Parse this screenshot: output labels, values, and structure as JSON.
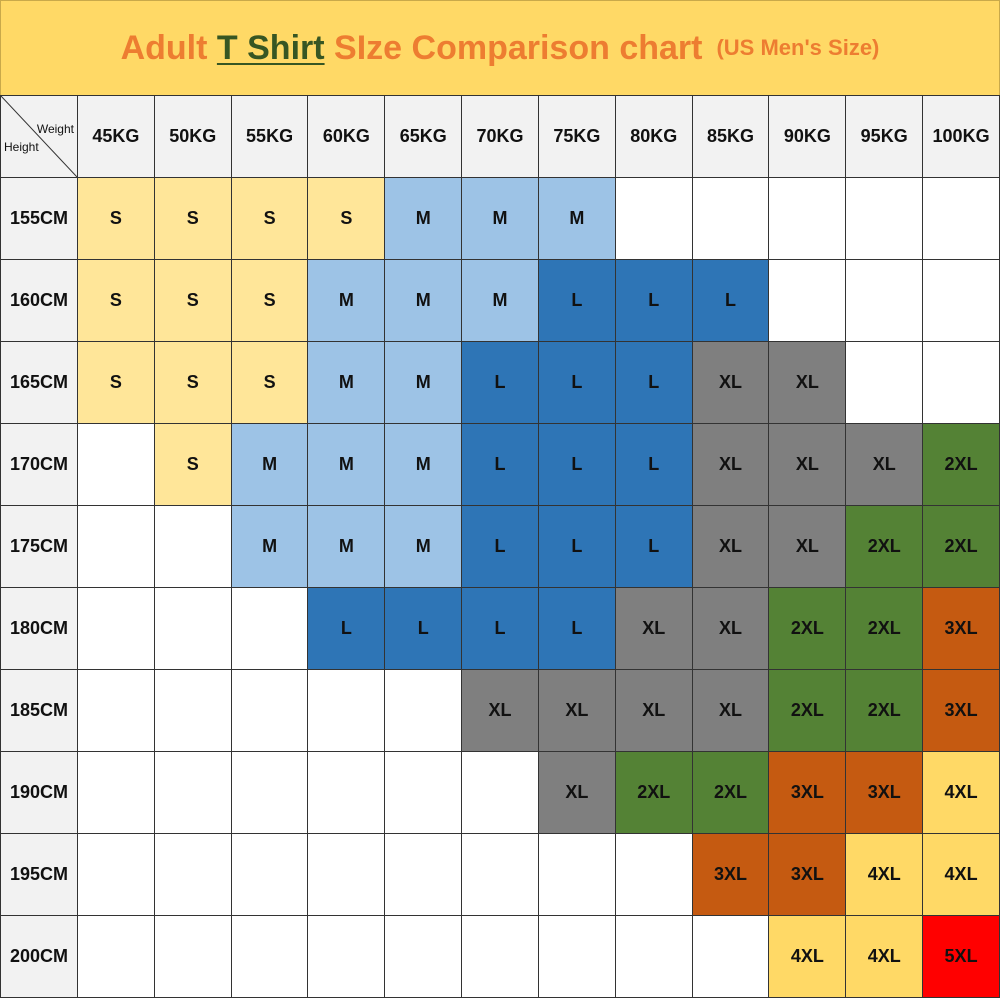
{
  "title": {
    "part1": "Adult",
    "highlight": "T Shirt",
    "part2": "SIze Comparison chart",
    "subtitle": "(US  Men's  Size)"
  },
  "chart_data": {
    "type": "table",
    "corner": {
      "col_label": "Weight",
      "row_label": "Height"
    },
    "columns": [
      "45KG",
      "50KG",
      "55KG",
      "60KG",
      "65KG",
      "70KG",
      "75KG",
      "80KG",
      "85KG",
      "90KG",
      "95KG",
      "100KG"
    ],
    "rows": [
      {
        "height": "155CM",
        "sizes": [
          "S",
          "S",
          "S",
          "S",
          "M",
          "M",
          "M",
          "",
          "",
          "",
          "",
          ""
        ]
      },
      {
        "height": "160CM",
        "sizes": [
          "S",
          "S",
          "S",
          "M",
          "M",
          "M",
          "L",
          "L",
          "L",
          "",
          "",
          ""
        ]
      },
      {
        "height": "165CM",
        "sizes": [
          "S",
          "S",
          "S",
          "M",
          "M",
          "L",
          "L",
          "L",
          "XL",
          "XL",
          "",
          ""
        ]
      },
      {
        "height": "170CM",
        "sizes": [
          "",
          "S",
          "M",
          "M",
          "M",
          "L",
          "L",
          "L",
          "XL",
          "XL",
          "XL",
          "2XL"
        ]
      },
      {
        "height": "175CM",
        "sizes": [
          "",
          "",
          "M",
          "M",
          "M",
          "L",
          "L",
          "L",
          "XL",
          "XL",
          "2XL",
          "2XL"
        ]
      },
      {
        "height": "180CM",
        "sizes": [
          "",
          "",
          "",
          "L",
          "L",
          "L",
          "L",
          "XL",
          "XL",
          "2XL",
          "2XL",
          "3XL"
        ]
      },
      {
        "height": "185CM",
        "sizes": [
          "",
          "",
          "",
          "",
          "",
          "XL",
          "XL",
          "XL",
          "XL",
          "2XL",
          "2XL",
          "3XL"
        ]
      },
      {
        "height": "190CM",
        "sizes": [
          "",
          "",
          "",
          "",
          "",
          "",
          "XL",
          "2XL",
          "2XL",
          "3XL",
          "3XL",
          "4XL"
        ]
      },
      {
        "height": "195CM",
        "sizes": [
          "",
          "",
          "",
          "",
          "",
          "",
          "",
          "",
          "3XL",
          "3XL",
          "4XL",
          "4XL"
        ]
      },
      {
        "height": "200CM",
        "sizes": [
          "",
          "",
          "",
          "",
          "",
          "",
          "",
          "",
          "",
          "4XL",
          "4XL",
          "5XL"
        ]
      }
    ],
    "size_colors": {
      "S": "#FFE699",
      "M": "#9DC3E6",
      "L": "#2E75B6",
      "XL": "#7F7F7F",
      "2XL": "#548235",
      "3XL": "#C55A11",
      "4XL": "#FFD966",
      "5XL": "#FF0000"
    }
  }
}
